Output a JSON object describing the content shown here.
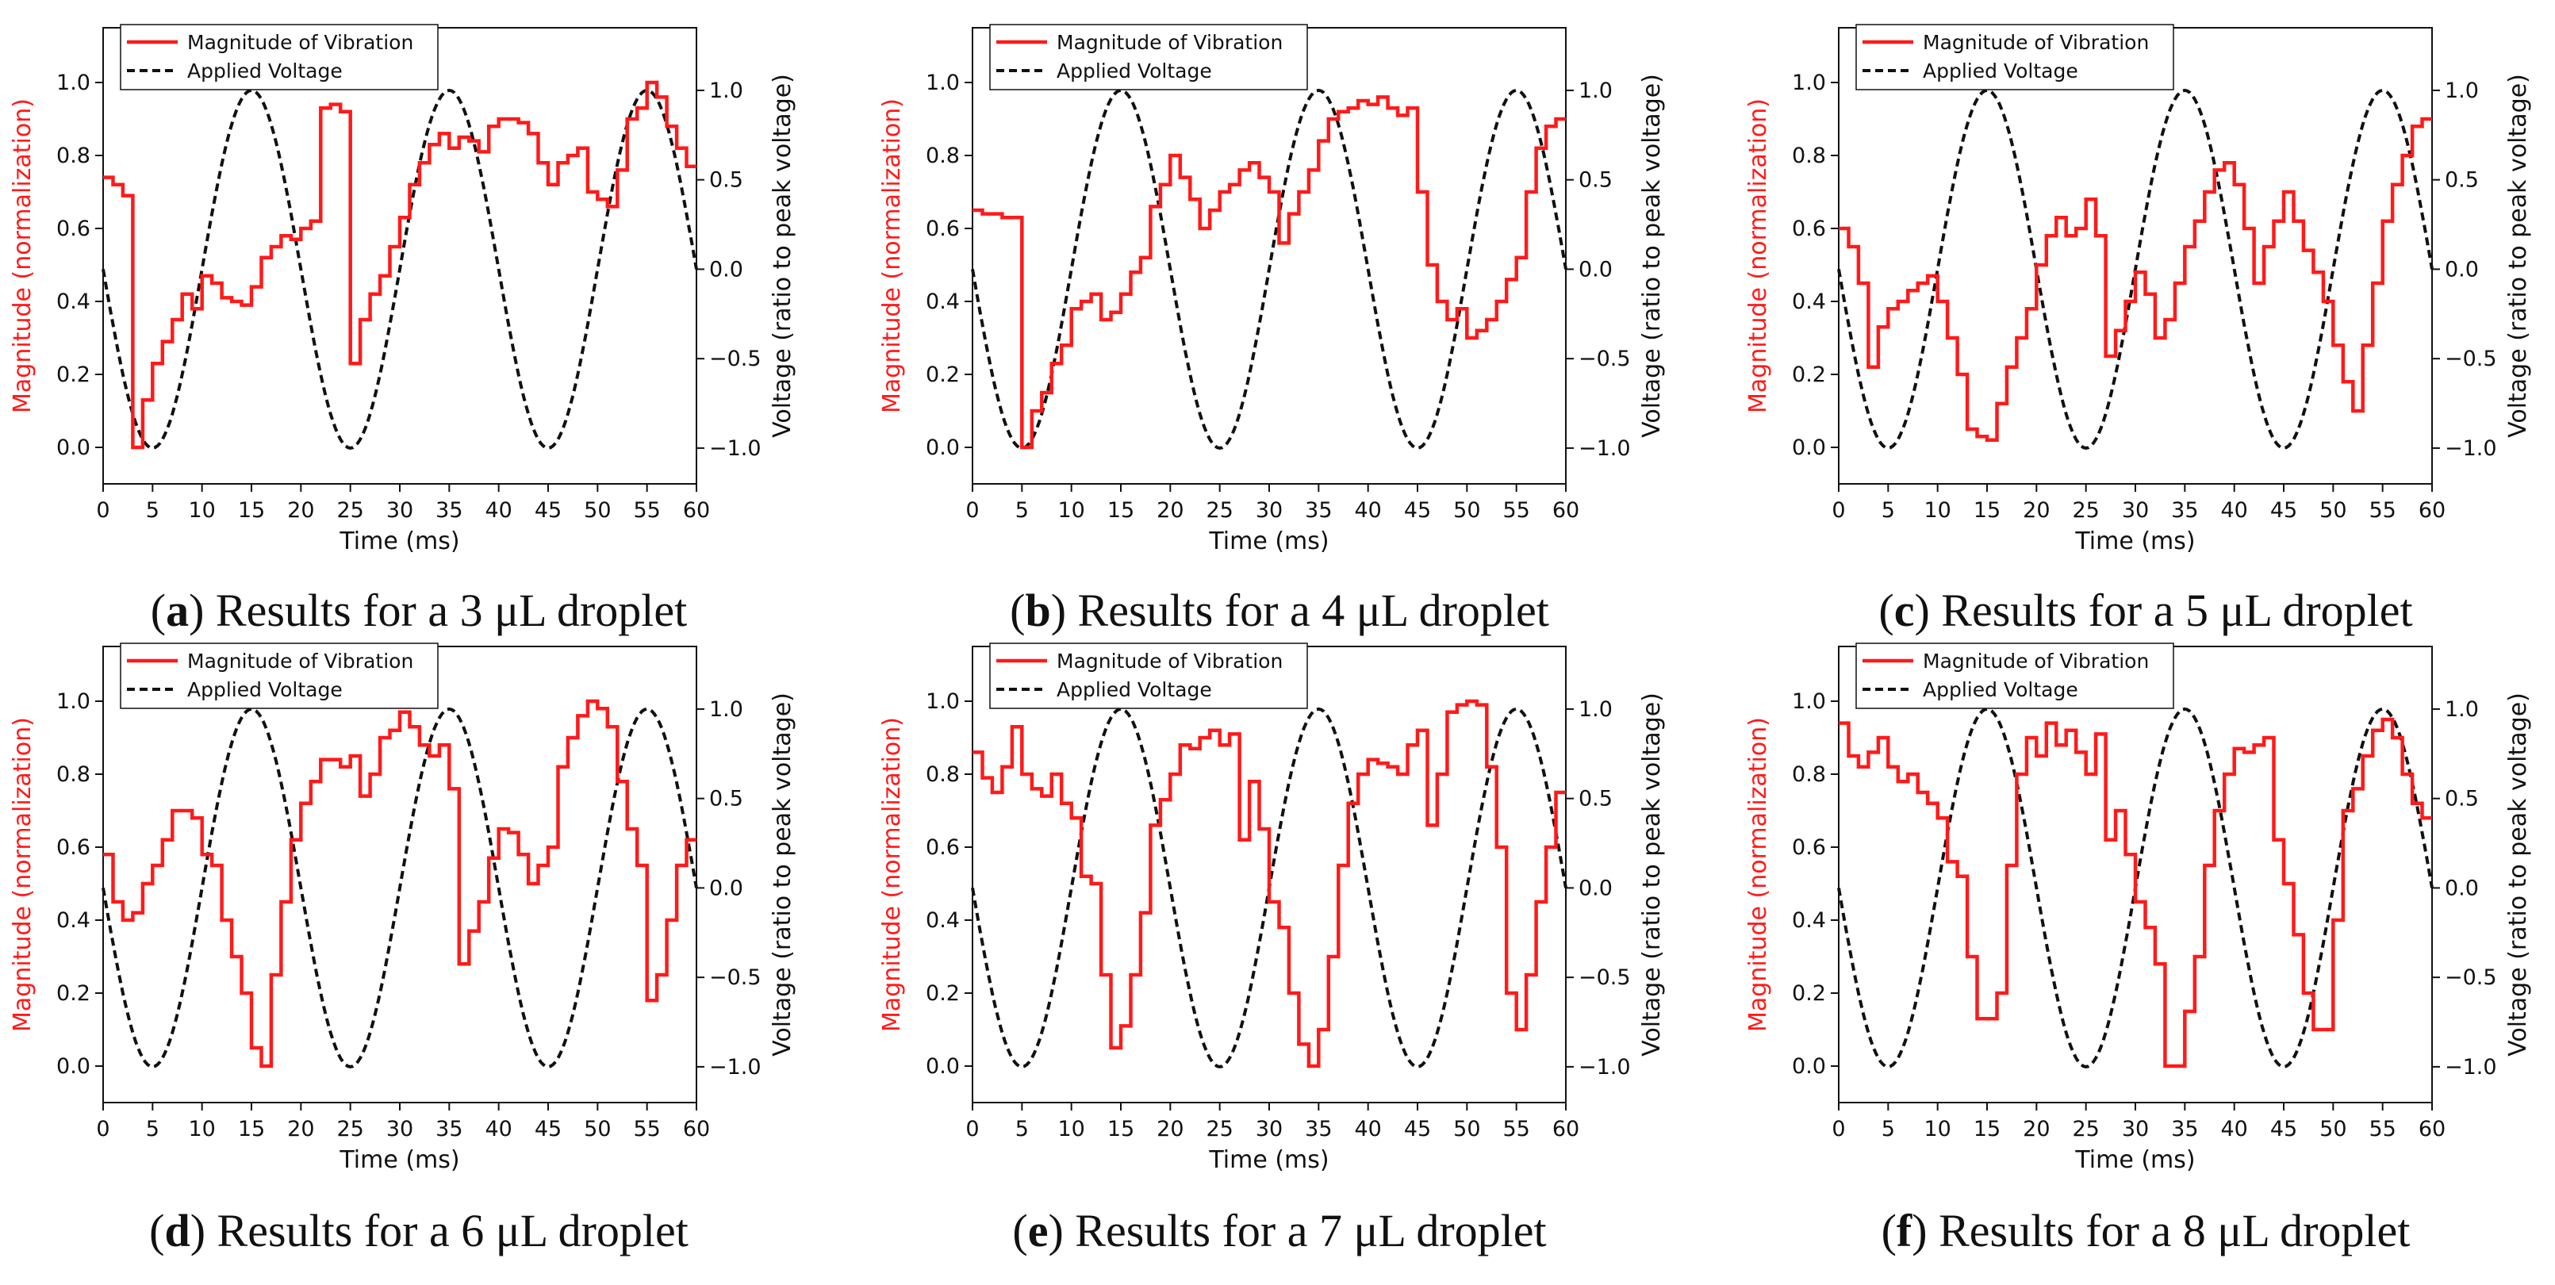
{
  "colors": {
    "vibration": "#ff1a1a",
    "voltage": "#111111",
    "magnitude_axis": "#ff1a1a"
  },
  "chart_data": [
    {
      "type": "line",
      "panel_letter": "a",
      "caption": "Results for a 3 μL droplet",
      "legend": [
        "Magnitude of Vibration",
        "Applied Voltage"
      ],
      "xlabel": "Time (ms)",
      "ylabel_left": "Magnitude (normalization)",
      "ylabel_right": "Voltage (ratio to peak voltage)",
      "xlim": [
        0,
        60
      ],
      "ylim_left": [
        -0.1,
        1.15
      ],
      "ylim_right": [
        -1.2,
        1.35
      ],
      "xticks": [
        "0",
        "5",
        "10",
        "15",
        "20",
        "25",
        "30",
        "35",
        "40",
        "45",
        "50",
        "55",
        "60"
      ],
      "yticks_left": [
        "0.0",
        "0.2",
        "0.4",
        "0.6",
        "0.8",
        "1.0"
      ],
      "yticks_right": [
        "−1.0",
        "−0.5",
        "0.0",
        "0.5",
        "1.0"
      ],
      "voltage": {
        "period_ms": 20,
        "phase_ms": 0,
        "peak_ms": 15
      },
      "series": [
        {
          "name": "Magnitude of Vibration",
          "step": 1,
          "values": [
            0.74,
            0.72,
            0.69,
            0.0,
            0.13,
            0.23,
            0.29,
            0.35,
            0.42,
            0.38,
            0.47,
            0.45,
            0.41,
            0.4,
            0.39,
            0.44,
            0.52,
            0.55,
            0.58,
            0.57,
            0.6,
            0.62,
            0.93,
            0.94,
            0.92,
            0.23,
            0.35,
            0.42,
            0.47,
            0.55,
            0.63,
            0.72,
            0.78,
            0.83,
            0.86,
            0.82,
            0.85,
            0.84,
            0.81,
            0.88,
            0.9,
            0.9,
            0.89,
            0.86,
            0.78,
            0.72,
            0.78,
            0.8,
            0.82,
            0.7,
            0.68,
            0.66,
            0.76,
            0.9,
            0.93,
            1.0,
            0.96,
            0.88,
            0.82,
            0.77
          ]
        }
      ]
    },
    {
      "type": "line",
      "panel_letter": "b",
      "caption": "Results for a 4 μL droplet",
      "legend": [
        "Magnitude of Vibration",
        "Applied Voltage"
      ],
      "xlabel": "Time (ms)",
      "ylabel_left": "Magnitude (normalization)",
      "ylabel_right": "Voltage (ratio to peak voltage)",
      "xlim": [
        0,
        60
      ],
      "ylim_left": [
        -0.1,
        1.15
      ],
      "ylim_right": [
        -1.2,
        1.35
      ],
      "xticks": [
        "0",
        "5",
        "10",
        "15",
        "20",
        "25",
        "30",
        "35",
        "40",
        "45",
        "50",
        "55",
        "60"
      ],
      "yticks_left": [
        "0.0",
        "0.2",
        "0.4",
        "0.6",
        "0.8",
        "1.0"
      ],
      "yticks_right": [
        "−1.0",
        "−0.5",
        "0.0",
        "0.5",
        "1.0"
      ],
      "voltage": {
        "period_ms": 20,
        "phase_ms": 0,
        "peak_ms": 15
      },
      "series": [
        {
          "name": "Magnitude of Vibration",
          "step": 1,
          "values": [
            0.65,
            0.64,
            0.64,
            0.63,
            0.63,
            0.0,
            0.1,
            0.15,
            0.23,
            0.28,
            0.38,
            0.4,
            0.42,
            0.35,
            0.37,
            0.42,
            0.48,
            0.52,
            0.66,
            0.72,
            0.8,
            0.74,
            0.68,
            0.6,
            0.65,
            0.7,
            0.72,
            0.76,
            0.78,
            0.74,
            0.7,
            0.56,
            0.64,
            0.7,
            0.76,
            0.84,
            0.9,
            0.92,
            0.93,
            0.95,
            0.94,
            0.96,
            0.93,
            0.91,
            0.93,
            0.7,
            0.5,
            0.4,
            0.35,
            0.38,
            0.3,
            0.32,
            0.35,
            0.4,
            0.46,
            0.52,
            0.7,
            0.82,
            0.88,
            0.9
          ]
        }
      ]
    },
    {
      "type": "line",
      "panel_letter": "c",
      "caption": "Results for a 5 μL droplet",
      "legend": [
        "Magnitude of Vibration",
        "Applied Voltage"
      ],
      "xlabel": "Time (ms)",
      "ylabel_left": "Magnitude (normalization)",
      "ylabel_right": "Voltage (ratio to peak voltage)",
      "xlim": [
        0,
        60
      ],
      "ylim_left": [
        -0.1,
        1.15
      ],
      "ylim_right": [
        -1.2,
        1.35
      ],
      "xticks": [
        "0",
        "5",
        "10",
        "15",
        "20",
        "25",
        "30",
        "35",
        "40",
        "45",
        "50",
        "55",
        "60"
      ],
      "yticks_left": [
        "0.0",
        "0.2",
        "0.4",
        "0.6",
        "0.8",
        "1.0"
      ],
      "yticks_right": [
        "−1.0",
        "−0.5",
        "0.0",
        "0.5",
        "1.0"
      ],
      "voltage": {
        "period_ms": 20,
        "phase_ms": 0,
        "peak_ms": 15
      },
      "series": [
        {
          "name": "Magnitude of Vibration",
          "step": 1,
          "values": [
            0.6,
            0.55,
            0.45,
            0.22,
            0.33,
            0.38,
            0.4,
            0.43,
            0.45,
            0.47,
            0.4,
            0.3,
            0.2,
            0.05,
            0.03,
            0.02,
            0.12,
            0.22,
            0.3,
            0.38,
            0.5,
            0.58,
            0.63,
            0.58,
            0.6,
            0.68,
            0.58,
            0.25,
            0.32,
            0.4,
            0.48,
            0.42,
            0.3,
            0.35,
            0.45,
            0.55,
            0.62,
            0.7,
            0.76,
            0.78,
            0.72,
            0.6,
            0.45,
            0.55,
            0.62,
            0.7,
            0.62,
            0.54,
            0.48,
            0.4,
            0.28,
            0.18,
            0.1,
            0.28,
            0.45,
            0.62,
            0.72,
            0.8,
            0.88,
            0.9
          ]
        }
      ]
    },
    {
      "type": "line",
      "panel_letter": "d",
      "caption": "Results for a 6 μL droplet",
      "legend": [
        "Magnitude of Vibration",
        "Applied Voltage"
      ],
      "xlabel": "Time (ms)",
      "ylabel_left": "Magnitude (normalization)",
      "ylabel_right": "Voltage (ratio to peak voltage)",
      "xlim": [
        0,
        60
      ],
      "ylim_left": [
        -0.1,
        1.15
      ],
      "ylim_right": [
        -1.2,
        1.35
      ],
      "xticks": [
        "0",
        "5",
        "10",
        "15",
        "20",
        "25",
        "30",
        "35",
        "40",
        "45",
        "50",
        "55",
        "60"
      ],
      "yticks_left": [
        "0.0",
        "0.2",
        "0.4",
        "0.6",
        "0.8",
        "1.0"
      ],
      "yticks_right": [
        "−1.0",
        "−0.5",
        "0.0",
        "0.5",
        "1.0"
      ],
      "voltage": {
        "period_ms": 20,
        "phase_ms": 0,
        "peak_ms": 15
      },
      "series": [
        {
          "name": "Magnitude of Vibration",
          "step": 1,
          "values": [
            0.58,
            0.45,
            0.4,
            0.42,
            0.5,
            0.55,
            0.62,
            0.7,
            0.7,
            0.68,
            0.58,
            0.55,
            0.4,
            0.3,
            0.2,
            0.05,
            0.0,
            0.25,
            0.45,
            0.62,
            0.72,
            0.78,
            0.84,
            0.84,
            0.82,
            0.85,
            0.74,
            0.8,
            0.9,
            0.92,
            0.97,
            0.93,
            0.88,
            0.85,
            0.88,
            0.76,
            0.28,
            0.37,
            0.45,
            0.57,
            0.65,
            0.64,
            0.58,
            0.5,
            0.55,
            0.6,
            0.82,
            0.9,
            0.96,
            1.0,
            0.98,
            0.93,
            0.78,
            0.65,
            0.55,
            0.18,
            0.25,
            0.4,
            0.55,
            0.62
          ]
        }
      ]
    },
    {
      "type": "line",
      "panel_letter": "e",
      "caption": "Results for a 7 μL droplet",
      "legend": [
        "Magnitude of Vibration",
        "Applied Voltage"
      ],
      "xlabel": "Time (ms)",
      "ylabel_left": "Magnitude (normalization)",
      "ylabel_right": "Voltage (ratio to peak voltage)",
      "xlim": [
        0,
        60
      ],
      "ylim_left": [
        -0.1,
        1.15
      ],
      "ylim_right": [
        -1.2,
        1.35
      ],
      "xticks": [
        "0",
        "5",
        "10",
        "15",
        "20",
        "25",
        "30",
        "35",
        "40",
        "45",
        "50",
        "55",
        "60"
      ],
      "yticks_left": [
        "0.0",
        "0.2",
        "0.4",
        "0.6",
        "0.8",
        "1.0"
      ],
      "yticks_right": [
        "−1.0",
        "−0.5",
        "0.0",
        "0.5",
        "1.0"
      ],
      "voltage": {
        "period_ms": 20,
        "phase_ms": 0,
        "peak_ms": 15
      },
      "series": [
        {
          "name": "Magnitude of Vibration",
          "step": 1,
          "values": [
            0.86,
            0.79,
            0.75,
            0.82,
            0.93,
            0.8,
            0.76,
            0.74,
            0.8,
            0.72,
            0.68,
            0.52,
            0.5,
            0.25,
            0.05,
            0.11,
            0.25,
            0.42,
            0.66,
            0.73,
            0.8,
            0.88,
            0.87,
            0.9,
            0.92,
            0.88,
            0.91,
            0.62,
            0.78,
            0.65,
            0.45,
            0.38,
            0.2,
            0.06,
            0.0,
            0.1,
            0.3,
            0.55,
            0.72,
            0.8,
            0.84,
            0.83,
            0.82,
            0.8,
            0.88,
            0.92,
            0.66,
            0.8,
            0.97,
            0.99,
            1.0,
            0.99,
            0.82,
            0.6,
            0.2,
            0.1,
            0.25,
            0.45,
            0.6,
            0.75
          ]
        }
      ]
    },
    {
      "type": "line",
      "panel_letter": "f",
      "caption": "Results for a 8 μL droplet",
      "legend": [
        "Magnitude of Vibration",
        "Applied Voltage"
      ],
      "xlabel": "Time (ms)",
      "ylabel_left": "Magnitude (normalization)",
      "ylabel_right": "Voltage (ratio to peak voltage)",
      "xlim": [
        0,
        60
      ],
      "ylim_left": [
        -0.1,
        1.15
      ],
      "ylim_right": [
        -1.2,
        1.35
      ],
      "xticks": [
        "0",
        "5",
        "10",
        "15",
        "20",
        "25",
        "30",
        "35",
        "40",
        "45",
        "50",
        "55",
        "60"
      ],
      "yticks_left": [
        "0.0",
        "0.2",
        "0.4",
        "0.6",
        "0.8",
        "1.0"
      ],
      "yticks_right": [
        "−1.0",
        "−0.5",
        "0.0",
        "0.5",
        "1.0"
      ],
      "voltage": {
        "period_ms": 20,
        "phase_ms": 0,
        "peak_ms": 15
      },
      "series": [
        {
          "name": "Magnitude of Vibration",
          "step": 1,
          "values": [
            0.94,
            0.85,
            0.82,
            0.86,
            0.9,
            0.82,
            0.78,
            0.8,
            0.75,
            0.72,
            0.68,
            0.56,
            0.52,
            0.3,
            0.13,
            0.13,
            0.2,
            0.55,
            0.8,
            0.9,
            0.85,
            0.94,
            0.88,
            0.92,
            0.86,
            0.8,
            0.91,
            0.62,
            0.7,
            0.58,
            0.45,
            0.38,
            0.28,
            0.0,
            0.0,
            0.15,
            0.3,
            0.55,
            0.7,
            0.8,
            0.87,
            0.86,
            0.88,
            0.9,
            0.62,
            0.5,
            0.36,
            0.2,
            0.1,
            0.1,
            0.4,
            0.7,
            0.76,
            0.85,
            0.92,
            0.95,
            0.9,
            0.8,
            0.72,
            0.68
          ]
        }
      ]
    }
  ]
}
